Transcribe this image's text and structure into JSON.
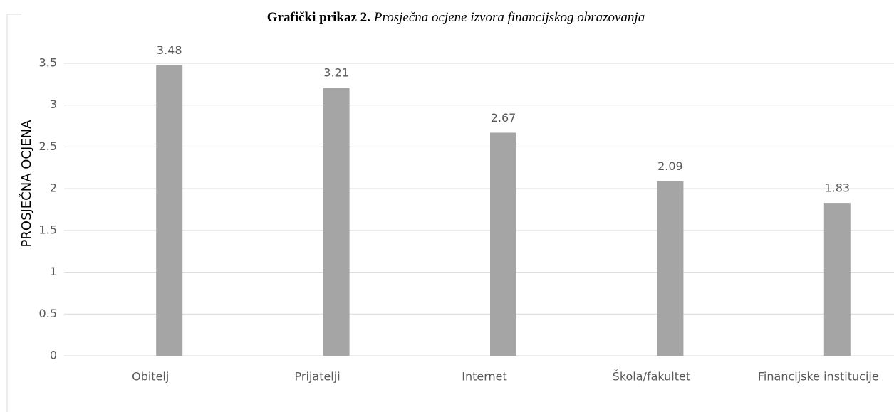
{
  "chart_data": {
    "type": "bar",
    "title": {
      "label": "Grafički prikaz 2.",
      "text": "Prosječna ocjene izvora financijskog obrazovanja"
    },
    "y_label": "PROSJEČNA OCJENA",
    "categories": [
      "Obitelj",
      "Prijatelji",
      "Internet",
      "Škola/fakultet",
      "Financijske institucije"
    ],
    "values": [
      3.48,
      3.21,
      2.67,
      2.09,
      1.83
    ],
    "color": "#a5a5a5",
    "ylim": [
      0,
      3.5
    ],
    "yticks": [
      0,
      0.5,
      1,
      1.5,
      2,
      2.5,
      3,
      3.5
    ],
    "grid": true
  }
}
